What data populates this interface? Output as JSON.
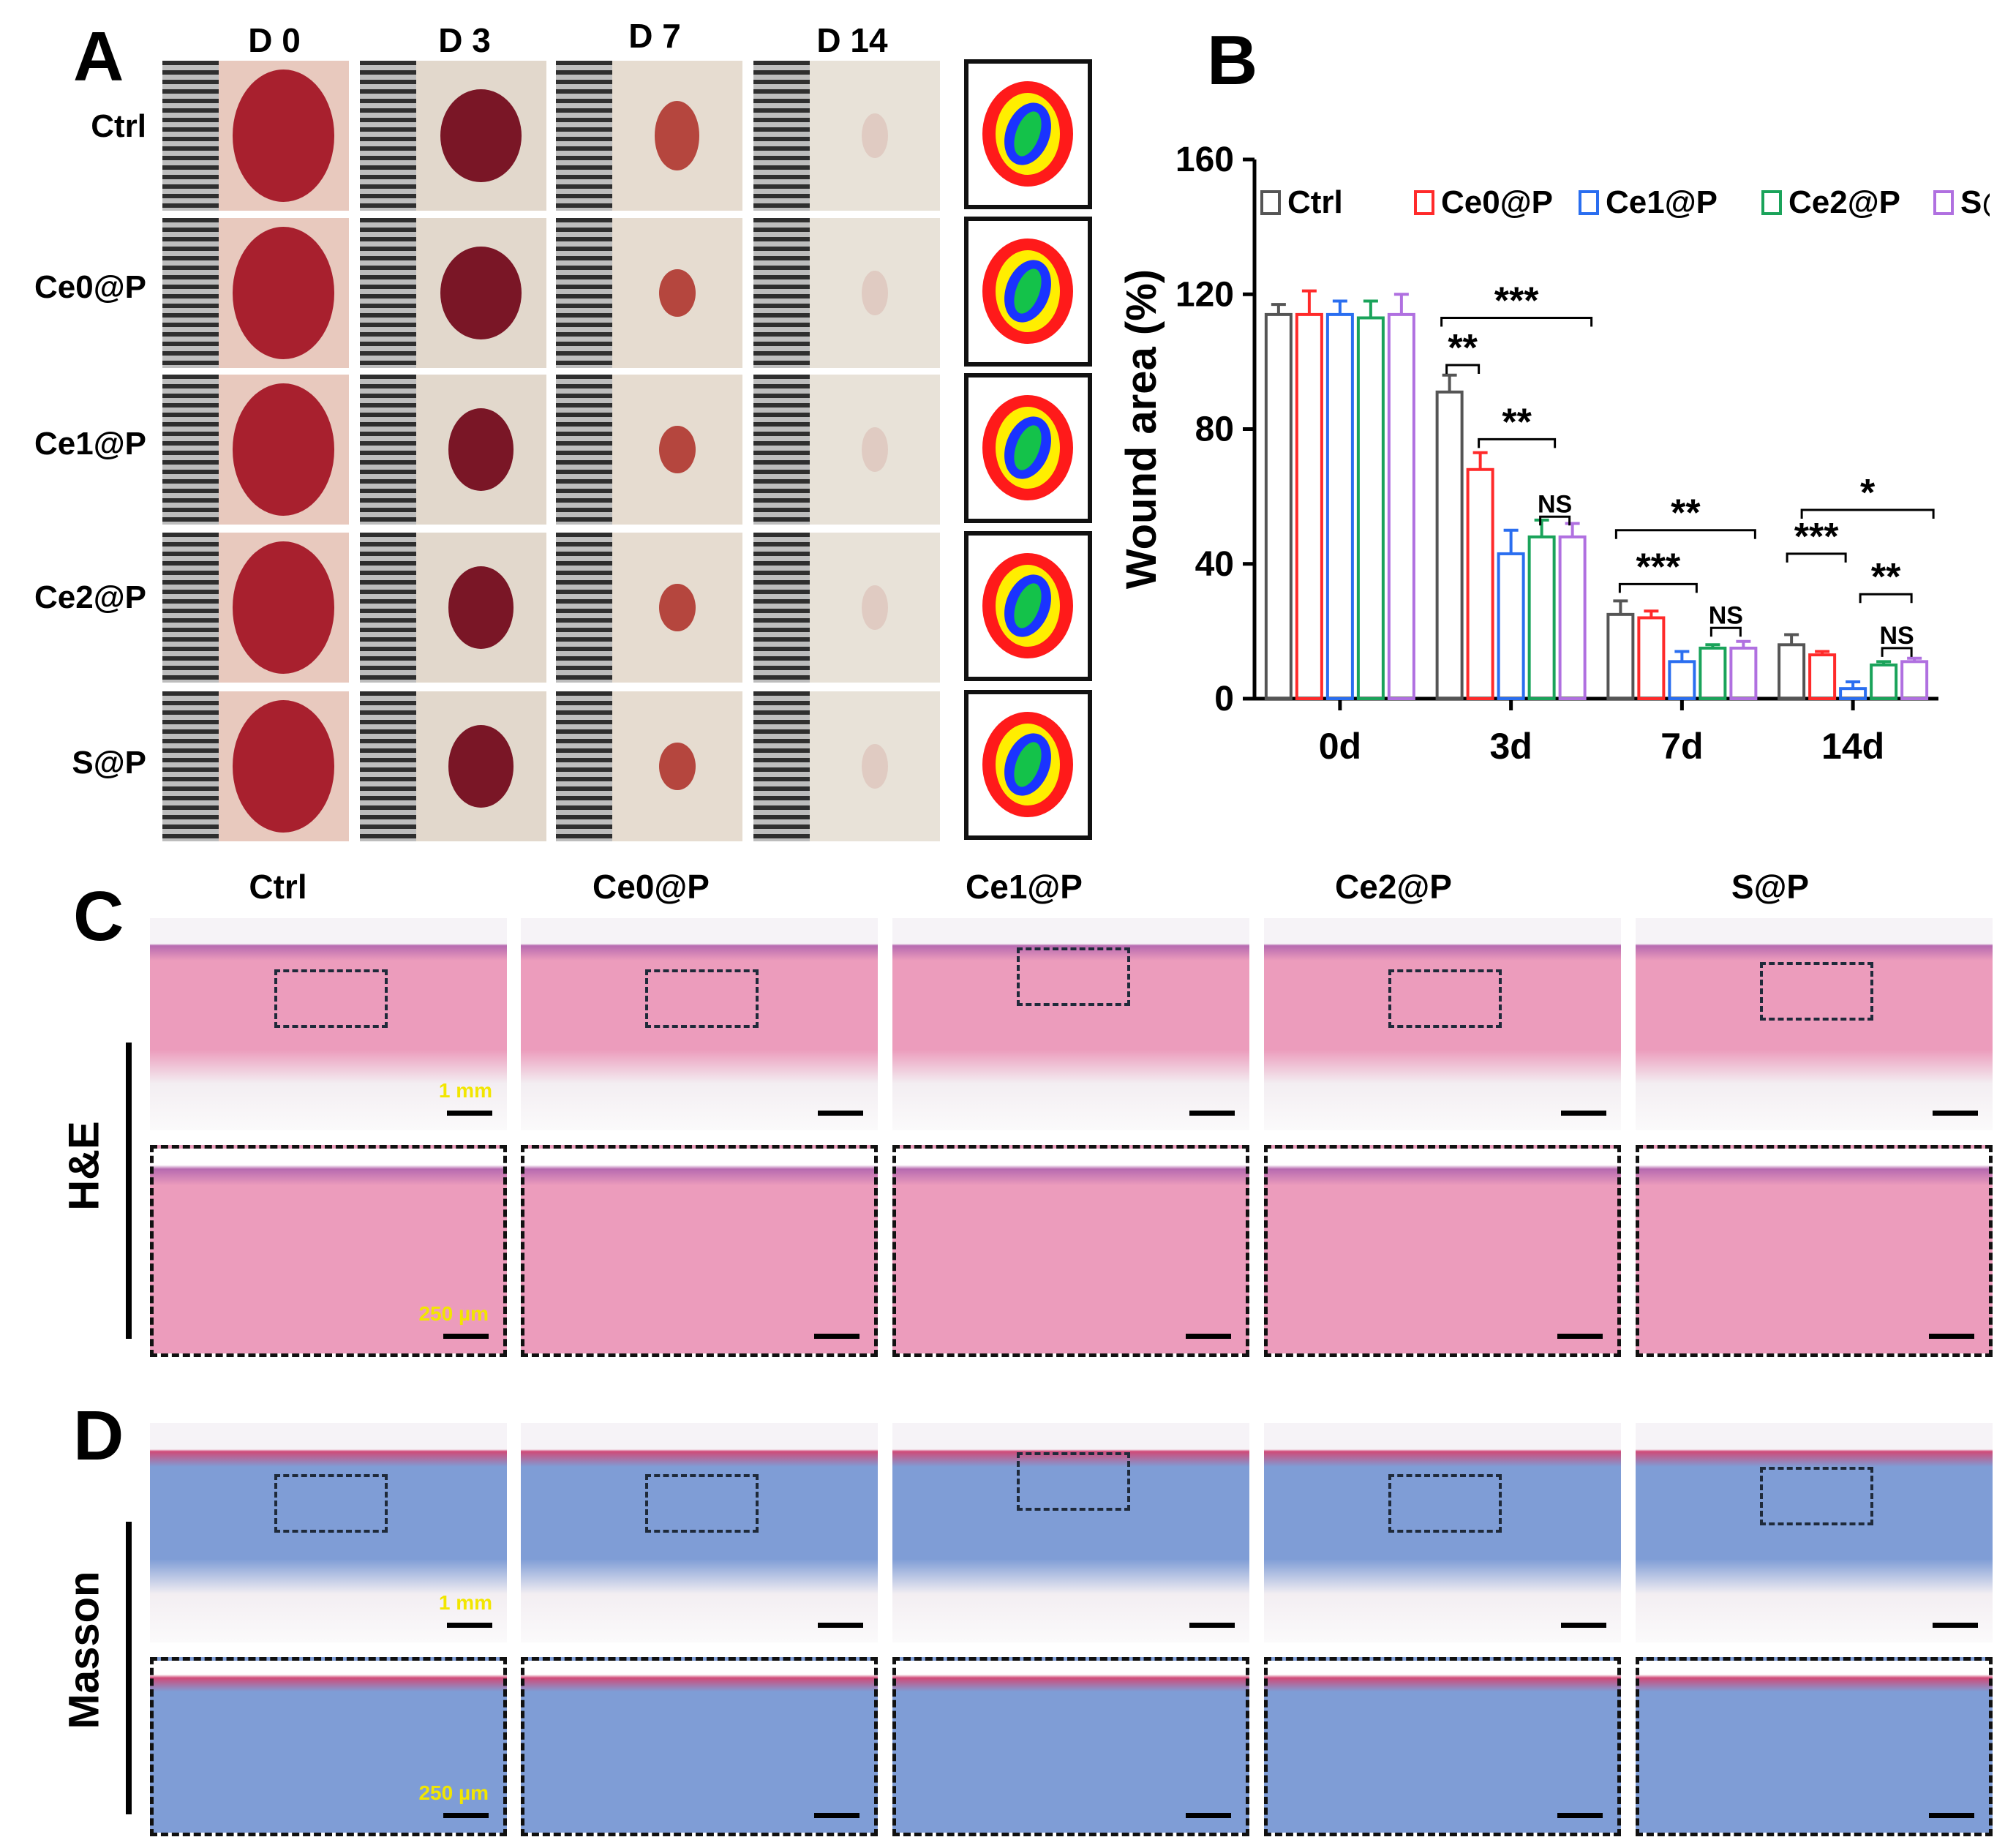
{
  "panels": {
    "a": "A",
    "b": "B",
    "c": "C",
    "d": "D"
  },
  "panelA": {
    "days": [
      "D 0",
      "D 3",
      "D 7",
      "D 14"
    ],
    "groups": [
      "Ctrl",
      "Ce0@P",
      "Ce1@P",
      "Ce2@P",
      "S@P"
    ]
  },
  "histology": {
    "groups": [
      "Ctrl",
      "Ce0@P",
      "Ce1@P",
      "Ce2@P",
      "S@P"
    ],
    "he_label": "H&E",
    "masson_label": "Masson",
    "scale_top": "1 mm",
    "scale_zoom": "250 µm"
  },
  "colors": {
    "ctrl": "#555555",
    "ce0": "#ff2a2a",
    "ce1": "#2a6ef0",
    "ce2": "#1aa35a",
    "sp": "#b070e0",
    "he_tissue": "#ec9cbc",
    "masson_tissue": "#7f9dd6"
  },
  "chart_data": {
    "type": "bar",
    "ylabel": "Wound area (%)",
    "xlabel": "",
    "ylim": [
      0,
      160
    ],
    "yticks": [
      "0",
      "40",
      "80",
      "120",
      "160"
    ],
    "categories": [
      "0d",
      "3d",
      "7d",
      "14d"
    ],
    "legend_position": "top",
    "series": [
      {
        "name": "Ctrl",
        "values": [
          114,
          91,
          25,
          16
        ],
        "errors": [
          3,
          5,
          4,
          3
        ]
      },
      {
        "name": "Ce0@P",
        "values": [
          114,
          68,
          24,
          13
        ],
        "errors": [
          7,
          5,
          2,
          1
        ]
      },
      {
        "name": "Ce1@P",
        "values": [
          114,
          43,
          11,
          3
        ],
        "errors": [
          4,
          7,
          3,
          2
        ]
      },
      {
        "name": "Ce2@P",
        "values": [
          113,
          48,
          15,
          10
        ],
        "errors": [
          5,
          5,
          1,
          1
        ]
      },
      {
        "name": "S@P",
        "values": [
          114,
          48,
          15,
          11
        ],
        "errors": [
          6,
          4,
          2,
          1
        ]
      }
    ],
    "significance": [
      {
        "day": "3d",
        "label": "***"
      },
      {
        "day": "3d",
        "label": "**"
      },
      {
        "day": "3d",
        "label": "**"
      },
      {
        "day": "3d",
        "label": "NS"
      },
      {
        "day": "7d",
        "label": "**"
      },
      {
        "day": "7d",
        "label": "***"
      },
      {
        "day": "7d",
        "label": "NS"
      },
      {
        "day": "14d",
        "label": "*"
      },
      {
        "day": "14d",
        "label": "***"
      },
      {
        "day": "14d",
        "label": "**"
      },
      {
        "day": "14d",
        "label": "NS"
      }
    ]
  }
}
